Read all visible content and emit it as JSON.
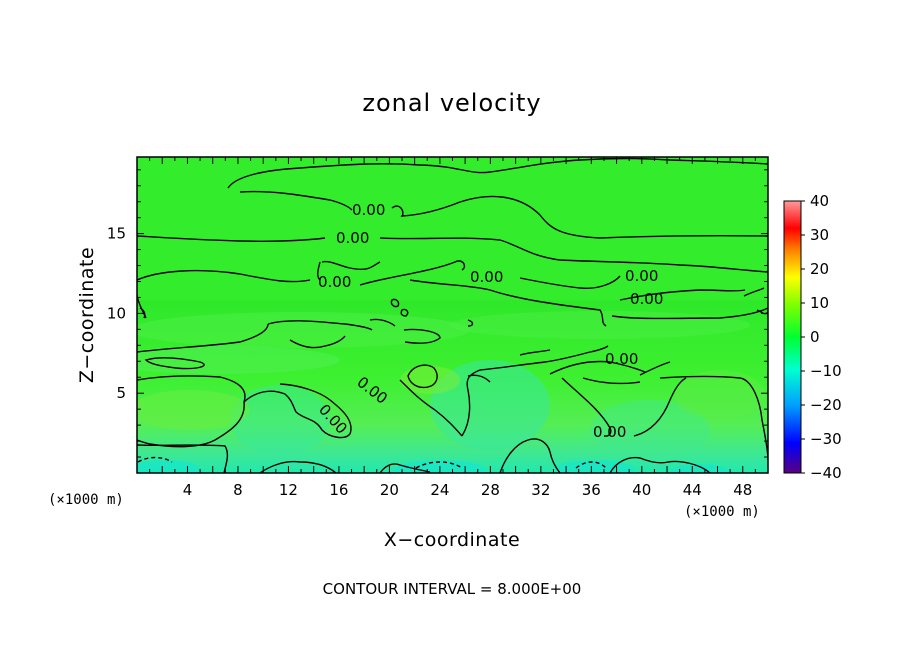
{
  "chart_data": {
    "type": "heatmap",
    "title": "zonal velocity",
    "xlabel": "X−coordinate",
    "ylabel": "Z−coordinate",
    "x_unit": "(×1000 m)",
    "y_unit": "(×1000 m)",
    "xlim": [
      0,
      50
    ],
    "ylim": [
      0,
      19.8
    ],
    "x_ticks": [
      "4",
      "8",
      "12",
      "16",
      "20",
      "24",
      "28",
      "32",
      "36",
      "40",
      "44",
      "48"
    ],
    "y_ticks": [
      "5",
      "10",
      "15"
    ],
    "contour_interval_text": "CONTOUR INTERVAL = 8.000E+00",
    "contour_level_label": "0.00",
    "colorbar": {
      "min": -40,
      "max": 40,
      "ticks": [
        "40",
        "30",
        "20",
        "10",
        "0",
        "−10",
        "−20",
        "−30",
        "−40"
      ],
      "colors": [
        "#5a0080",
        "#0000ff",
        "#00a0ff",
        "#00ffd0",
        "#00ff30",
        "#80ff00",
        "#ffff00",
        "#ff8000",
        "#ff0000",
        "#ff9090"
      ]
    },
    "field_note": "values mostly between -8 and 8"
  }
}
